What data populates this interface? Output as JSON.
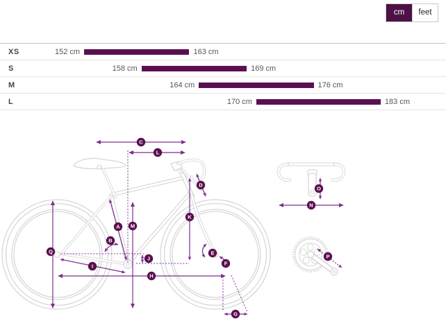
{
  "unit_toggle": {
    "options": [
      {
        "label": "cm",
        "selected": true
      },
      {
        "label": "feet",
        "selected": false
      }
    ]
  },
  "chart_data": {
    "type": "bar",
    "variant": "horizontal-range",
    "unit": "cm",
    "axis_range": [
      152,
      183
    ],
    "legend": "none",
    "rows": [
      {
        "category": "XS",
        "min": 152,
        "max": 163,
        "min_label": "152 cm",
        "max_label": "163 cm"
      },
      {
        "category": "S",
        "min": 158,
        "max": 169,
        "min_label": "158 cm",
        "max_label": "169 cm"
      },
      {
        "category": "M",
        "min": 164,
        "max": 176,
        "min_label": "164 cm",
        "max_label": "176 cm"
      },
      {
        "category": "L",
        "min": 170,
        "max": 183,
        "min_label": "170 cm",
        "max_label": "183 cm"
      }
    ]
  },
  "diagram": {
    "badges": [
      "A",
      "B",
      "C",
      "D",
      "E",
      "F",
      "G",
      "H",
      "I",
      "J",
      "K",
      "L",
      "M",
      "N",
      "O",
      "P",
      "Q"
    ]
  },
  "colors": {
    "bar_purple": "#5a1050",
    "toggle_purple": "#4d1145",
    "arrow_purple": "#7d2f8f",
    "bike_outline": "#d7d7d7",
    "row_divider": "#e4e4e4",
    "table_top_border": "#c4c4c4",
    "text_gray": "#555555"
  }
}
